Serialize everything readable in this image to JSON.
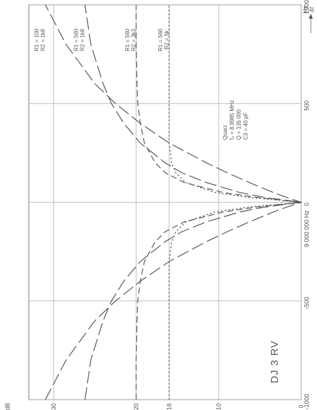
{
  "chart_data": {
    "type": "line",
    "orientation": "rotated-90-ccw",
    "title": "DJ 3 RV",
    "x_unit": "Hz",
    "delta_symbol": "Δf",
    "x_center_label": "9 000 000 Hz",
    "x_ticks": [
      {
        "value": -1000,
        "label": "-1000"
      },
      {
        "value": -500,
        "label": "-500"
      },
      {
        "value": 0,
        "label": "0"
      },
      {
        "value": 500,
        "label": "500"
      },
      {
        "value": 1000,
        "label": "1000"
      }
    ],
    "y_unit": "dB",
    "y_ticks": [
      {
        "value": 0,
        "label": "0"
      },
      {
        "value": 10,
        "label": "10"
      },
      {
        "value": 16,
        "label": "16"
      },
      {
        "value": 20,
        "label": "20"
      },
      {
        "value": 30,
        "label": "30"
      }
    ],
    "xlim": [
      -1000,
      1000
    ],
    "ylim": [
      0,
      33
    ],
    "grid": true,
    "x_values": [
      -1000,
      -800,
      -600,
      -500,
      -400,
      -300,
      -200,
      -150,
      -100,
      -50,
      -25,
      0,
      25,
      50,
      100,
      150,
      200,
      300,
      400,
      500,
      600,
      800,
      1000
    ],
    "series": [
      {
        "name": "R1 = 100  R2 = 1k8",
        "dash": "long",
        "values": [
          31.0,
          28.5,
          25.0,
          22.5,
          19.5,
          16.0,
          11.5,
          9.0,
          6.3,
          3.4,
          1.8,
          0,
          1.8,
          3.4,
          6.3,
          9.0,
          11.5,
          16.0,
          19.5,
          22.5,
          25.0,
          28.5,
          31.0
        ]
      },
      {
        "name": "R1 = 560  R2 = 1k8",
        "dash": "long",
        "values": [
          26.2,
          25.5,
          24.0,
          23.0,
          21.5,
          19.5,
          16.5,
          14.5,
          11.5,
          7.5,
          4.5,
          0,
          4.5,
          7.5,
          11.5,
          14.5,
          16.5,
          19.5,
          21.5,
          23.0,
          24.0,
          25.5,
          26.2
        ]
      },
      {
        "name": "R1 = 560  R2 = 3k3",
        "dash": "medium",
        "values": [
          20.0,
          20.0,
          19.9,
          19.8,
          19.5,
          19.0,
          17.7,
          16.5,
          14.2,
          9.5,
          5.5,
          0,
          5.5,
          9.5,
          14.2,
          16.5,
          17.7,
          19.0,
          19.5,
          19.8,
          19.9,
          20.0,
          20.0
        ]
      },
      {
        "name": "R1 = 560  R2 = 5k",
        "dash": "short",
        "values": [
          16.0,
          16.0,
          16.0,
          16.0,
          16.0,
          16.0,
          15.7,
          15.2,
          14.0,
          10.5,
          6.5,
          0,
          6.5,
          10.5,
          14.0,
          15.2,
          15.7,
          16.0,
          16.0,
          16.0,
          16.0,
          16.0,
          16.0
        ]
      }
    ],
    "annotation": {
      "lines": [
        "Quarz",
        "f₀  = 8.9985 MHz",
        "Q  = 135 000",
        "C3 = 40 pF"
      ]
    }
  }
}
